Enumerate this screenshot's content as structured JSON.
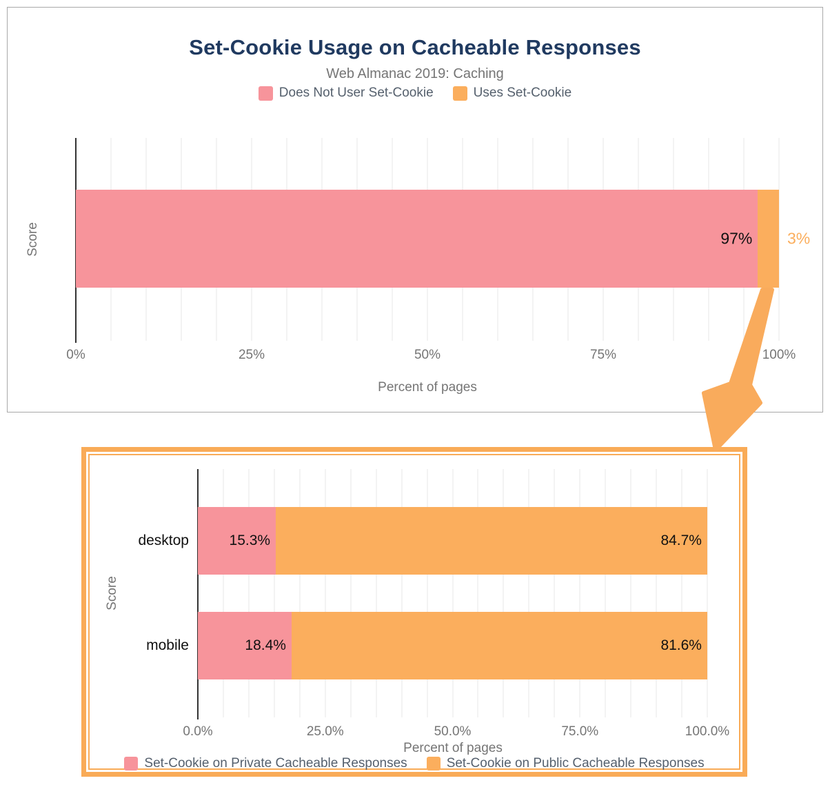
{
  "colors": {
    "series_pink": "#f7949b",
    "series_orange": "#fbae5d",
    "title_navy": "#203a60",
    "highlight_frame_orange": "#f9ab57",
    "arrow_orange": "#f9ab5c"
  },
  "chart_data": [
    {
      "type": "bar",
      "stacked": true,
      "orientation": "horizontal",
      "title": "Set-Cookie Usage on Cacheable Responses",
      "subtitle": "Web Almanac 2019: Caching",
      "categories": [
        ""
      ],
      "series": [
        {
          "name": "Does Not User Set-Cookie",
          "color": "#f7949b",
          "values": [
            97
          ],
          "value_labels": [
            "97%"
          ]
        },
        {
          "name": "Uses Set-Cookie",
          "color": "#fbae5d",
          "values": [
            3
          ],
          "value_labels": [
            "3%"
          ]
        }
      ],
      "xlabel": "Percent of pages",
      "ylabel": "Score",
      "xlim": [
        0,
        100
      ],
      "xtick_labels": [
        "0%",
        "25%",
        "50%",
        "75%",
        "100%"
      ],
      "grid": "vertical, every 5%",
      "legend_position": "top"
    },
    {
      "type": "bar",
      "stacked": true,
      "orientation": "horizontal",
      "categories": [
        "desktop",
        "mobile"
      ],
      "series": [
        {
          "name": "Set-Cookie on Private Cacheable Responses",
          "color": "#f7949b",
          "values": [
            15.3,
            18.4
          ],
          "value_labels": [
            "15.3%",
            "18.4%"
          ]
        },
        {
          "name": "Set-Cookie on Public Cacheable Responses",
          "color": "#fbae5d",
          "values": [
            84.7,
            81.6
          ],
          "value_labels": [
            "84.7%",
            "81.6%"
          ]
        }
      ],
      "xlabel": "Percent of pages",
      "ylabel": "Score",
      "xlim": [
        0,
        100
      ],
      "xtick_labels": [
        "0.0%",
        "25.0%",
        "50.0%",
        "75.0%",
        "100.0%"
      ],
      "grid": "vertical, every 5%",
      "legend_position": "bottom"
    }
  ],
  "annotation_arrow": {
    "meaning": "points from the 3% Uses Set-Cookie segment to the highlighted breakdown chart",
    "color": "#f9ab5c"
  }
}
